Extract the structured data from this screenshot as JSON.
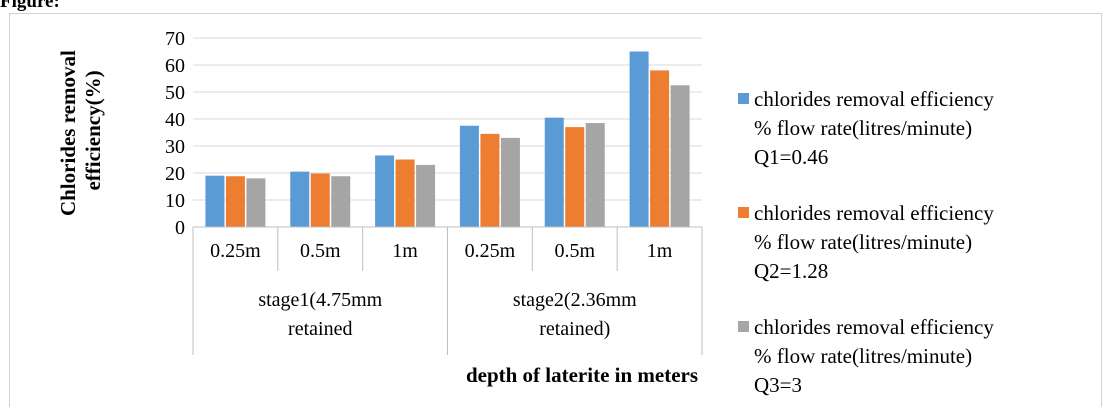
{
  "figure": {
    "caption": "Figure:"
  },
  "chart_data": {
    "type": "bar",
    "xlabel": "depth of laterite in meters",
    "ylabel": [
      "Chlorides removal",
      "efficiency(%)"
    ],
    "ylim": [
      0,
      70
    ],
    "yticks": [
      0,
      10,
      20,
      30,
      40,
      50,
      60,
      70
    ],
    "grid": true,
    "legend_position": "right",
    "categories": [
      "0.25m",
      "0.5m",
      "1m",
      "0.25m",
      "0.5m",
      "1m"
    ],
    "groups": [
      {
        "label": [
          "stage1(4.75mm",
          "retained"
        ],
        "span": [
          0,
          2
        ]
      },
      {
        "label": [
          "stage2(2.36mm",
          "retained)"
        ],
        "span": [
          3,
          5
        ]
      }
    ],
    "series": [
      {
        "name": [
          "chlorides removal efficiency",
          "% flow rate(litres/minute)",
          "Q1=0.46"
        ],
        "color": "#5b9bd5",
        "values": [
          19,
          20.5,
          26.5,
          37.5,
          40.5,
          65
        ]
      },
      {
        "name": [
          "chlorides removal efficiency",
          "% flow rate(litres/minute)",
          "Q2=1.28"
        ],
        "color": "#ed7d31",
        "values": [
          18.8,
          19.8,
          25,
          34.5,
          37,
          58
        ]
      },
      {
        "name": [
          "chlorides removal efficiency",
          "% flow rate(litres/minute)",
          "Q3=3"
        ],
        "color": "#a5a5a5",
        "values": [
          18,
          18.8,
          23,
          33,
          38.5,
          52.5
        ]
      }
    ]
  }
}
